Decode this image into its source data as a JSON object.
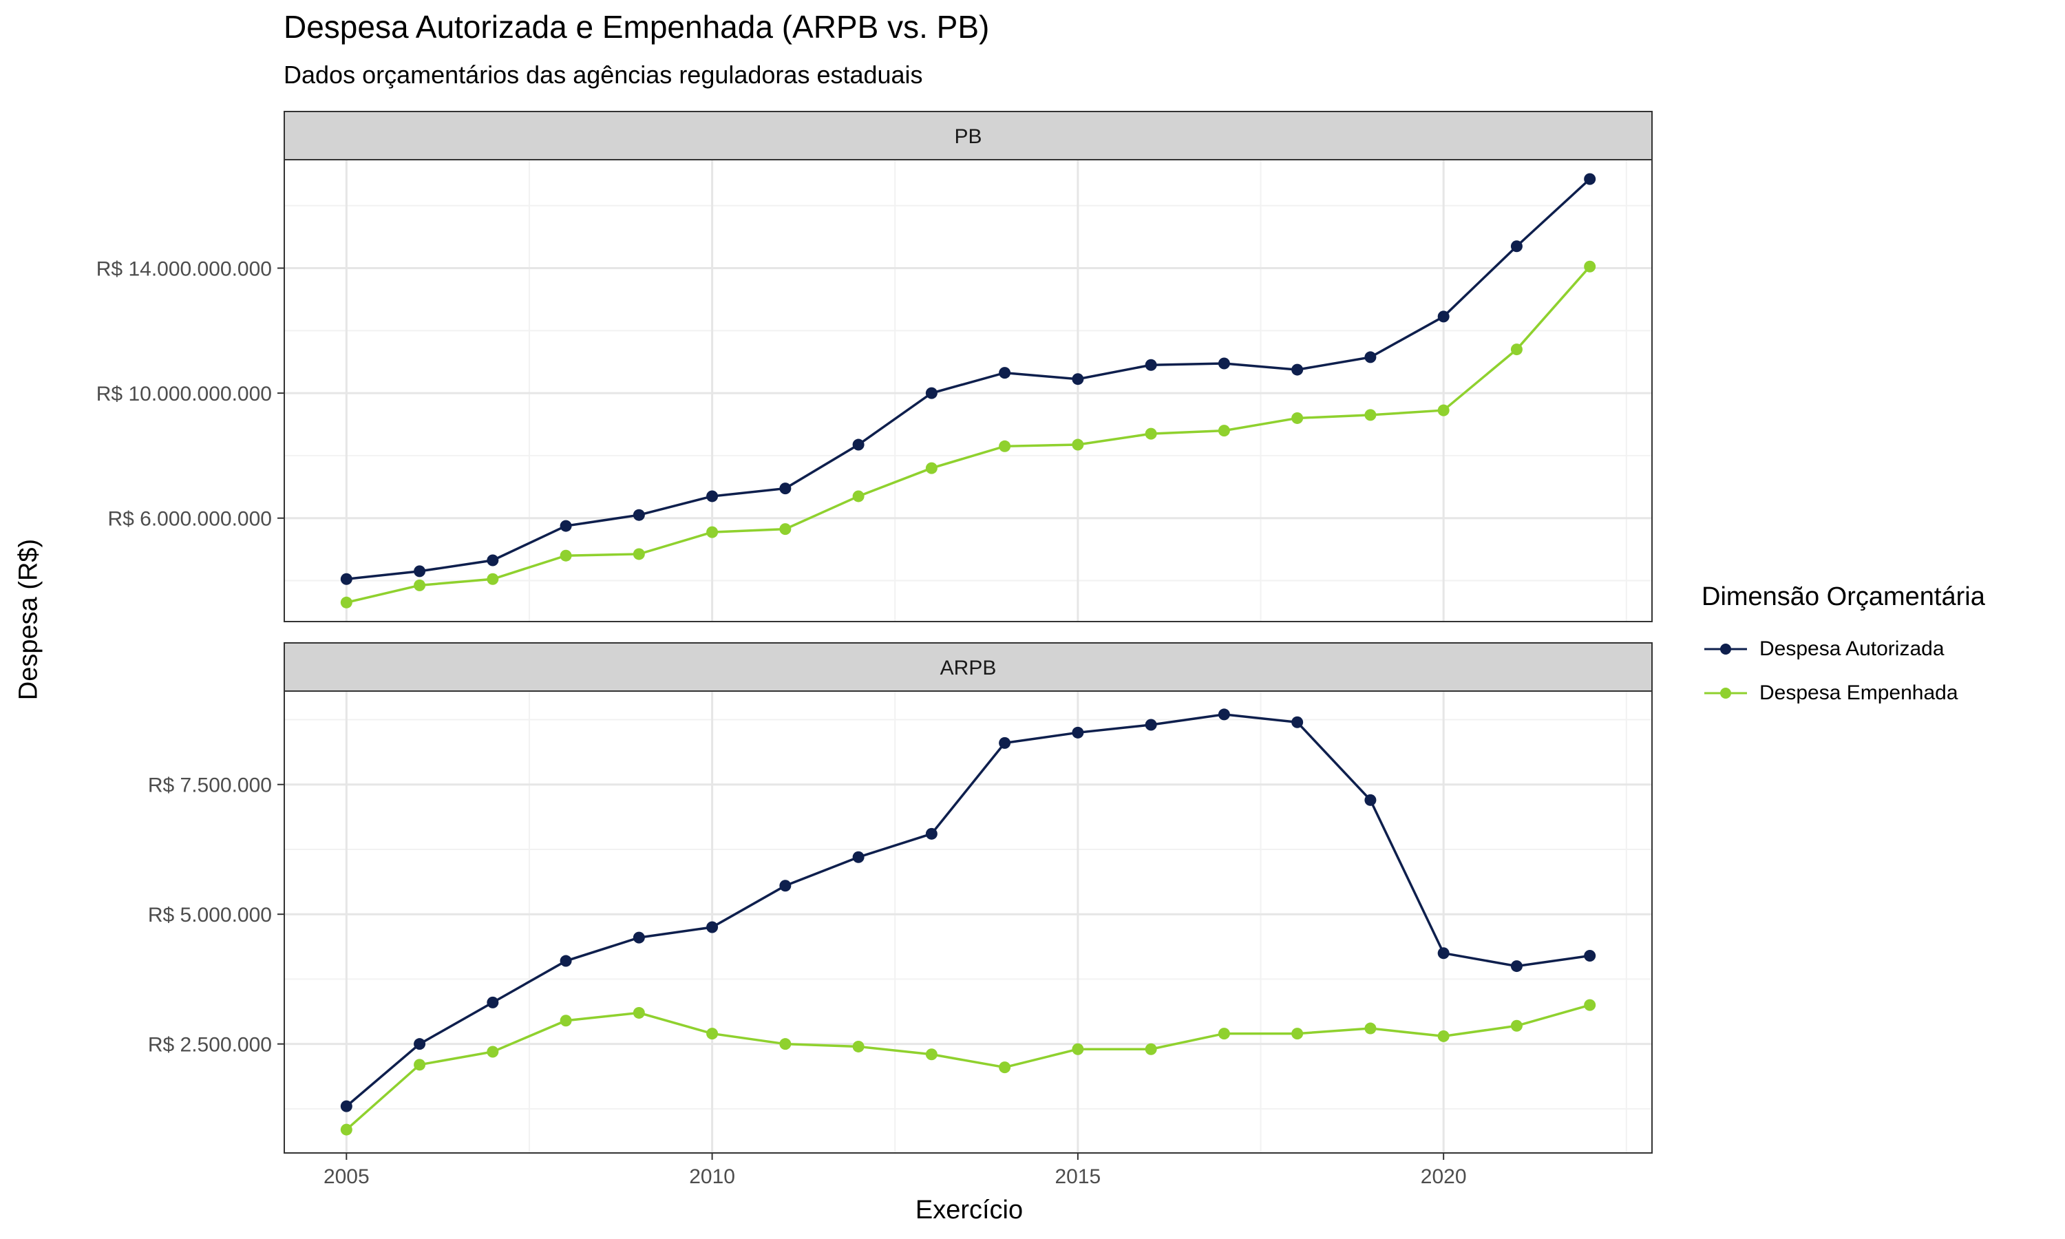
{
  "chart_data": {
    "type": "line",
    "title": "Despesa Autorizada e Empenhada (ARPB vs. PB)",
    "subtitle": "Dados orçamentários das agências reguladoras estaduais",
    "xlabel": "Exercício",
    "ylabel": "Despesa (R$)",
    "x": [
      2005,
      2006,
      2007,
      2008,
      2009,
      2010,
      2011,
      2012,
      2013,
      2014,
      2015,
      2016,
      2017,
      2018,
      2019,
      2020,
      2021,
      2022
    ],
    "xlim": [
      2004.15,
      2022.85
    ],
    "xticks": [
      2005,
      2010,
      2015,
      2020
    ],
    "xtick_labels": [
      "2005",
      "2010",
      "2015",
      "2020"
    ],
    "legend": {
      "title": "Dimensão Orçamentária",
      "position": "right",
      "entries": [
        "Despesa Autorizada",
        "Despesa Empenhada"
      ]
    },
    "colors": {
      "Despesa Autorizada": "#0e1f4d",
      "Despesa Empenhada": "#8fd12e",
      "strip_fill": "#d3d3d3",
      "grid": "#ebebeb"
    },
    "grid": true,
    "facets": [
      {
        "label": "PB",
        "ylim": [
          2690000000,
          17470000000
        ],
        "yticks": [
          6000000000,
          10000000000,
          14000000000
        ],
        "ytick_labels": [
          "R$ 6.000.000.000",
          "R$ 10.000.000.000",
          "R$ 14.000.000.000"
        ],
        "series": [
          {
            "name": "Despesa Autorizada",
            "values": [
              4050000000,
              4300000000,
              4650000000,
              5750000000,
              6100000000,
              6700000000,
              6950000000,
              8350000000,
              10000000000,
              10650000000,
              10450000000,
              10900000000,
              10950000000,
              10750000000,
              11150000000,
              12450000000,
              14700000000,
              16850000000
            ]
          },
          {
            "name": "Despesa Empenhada",
            "values": [
              3300000000,
              3850000000,
              4050000000,
              4800000000,
              4850000000,
              5550000000,
              5650000000,
              6700000000,
              7600000000,
              8300000000,
              8350000000,
              8700000000,
              8800000000,
              9200000000,
              9300000000,
              9450000000,
              11400000000,
              14050000000
            ]
          }
        ]
      },
      {
        "label": "ARPB",
        "ylim": [
          400000,
          9300000
        ],
        "yticks": [
          2500000,
          5000000,
          7500000
        ],
        "ytick_labels": [
          "R$ 2.500.000",
          "R$ 5.000.000",
          "R$ 7.500.000"
        ],
        "series": [
          {
            "name": "Despesa Autorizada",
            "values": [
              1300000,
              2500000,
              3300000,
              4100000,
              4550000,
              4750000,
              5550000,
              6100000,
              6550000,
              8300000,
              8500000,
              8650000,
              8850000,
              8700000,
              7200000,
              4250000,
              4000000,
              4200000
            ]
          },
          {
            "name": "Despesa Empenhada",
            "values": [
              850000,
              2100000,
              2350000,
              2950000,
              3100000,
              2700000,
              2500000,
              2450000,
              2300000,
              2050000,
              2400000,
              2400000,
              2700000,
              2700000,
              2800000,
              2650000,
              2850000,
              3250000
            ]
          }
        ]
      }
    ]
  }
}
